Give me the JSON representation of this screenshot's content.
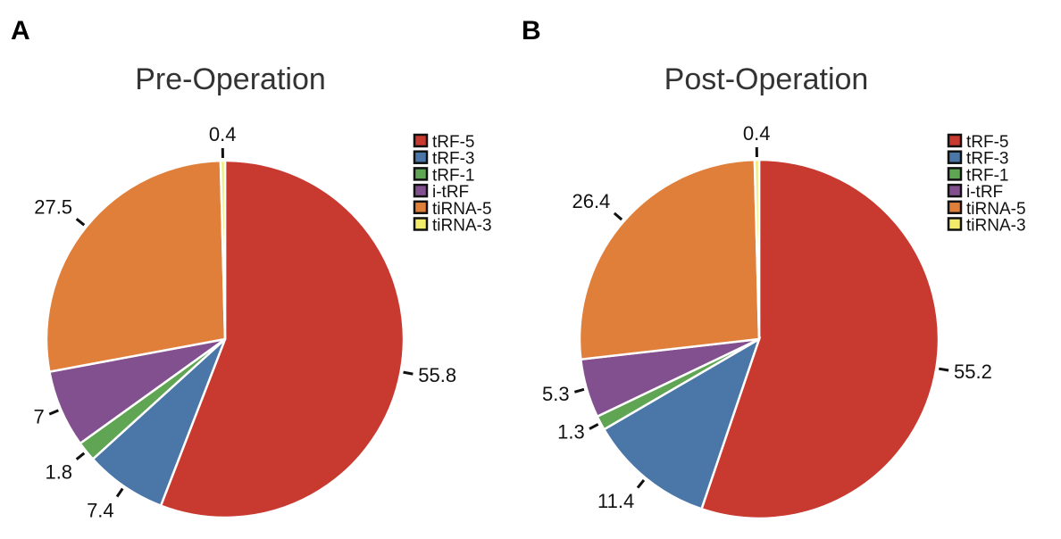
{
  "chart_data": [
    {
      "type": "pie",
      "panel": "A",
      "title": "Pre-Operation",
      "categories": [
        "tRF-5",
        "tRF-3",
        "tRF-1",
        "i-tRF",
        "tiRNA-5",
        "tiRNA-3"
      ],
      "values": [
        55.8,
        7.4,
        1.8,
        7,
        27.5,
        0.4
      ],
      "labels": [
        "55.8",
        "7.4",
        "1.8",
        "7",
        "27.5",
        "0.4"
      ],
      "legend": "right"
    },
    {
      "type": "pie",
      "panel": "B",
      "title": "Post-Operation",
      "categories": [
        "tRF-5",
        "tRF-3",
        "tRF-1",
        "i-tRF",
        "tiRNA-5",
        "tiRNA-3"
      ],
      "values": [
        55.2,
        11.4,
        1.3,
        5.3,
        26.4,
        0.4
      ],
      "labels": [
        "55.2",
        "11.4",
        "1.3",
        "5.3",
        "26.4",
        "0.4"
      ],
      "legend": "right"
    }
  ],
  "colors": [
    "#c8392f",
    "#4a76a8",
    "#5fa553",
    "#83508f",
    "#e07f3a",
    "#f3ec6a"
  ]
}
